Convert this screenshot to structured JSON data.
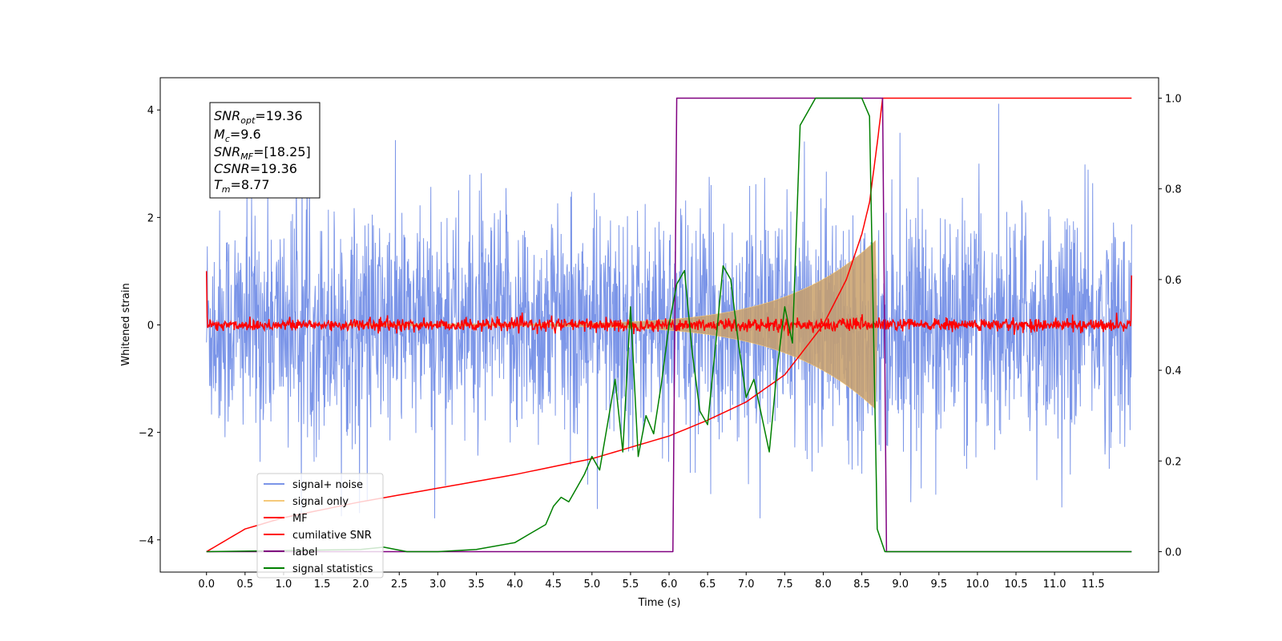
{
  "chart_data": {
    "type": "line",
    "xlabel": "Time (s)",
    "ylabel": "Whitened strain",
    "xlim": [
      -0.6,
      12.35
    ],
    "ylim": [
      -4.6,
      4.6
    ],
    "y2lim": [
      -0.045,
      1.045
    ],
    "x_ticks": [
      "0.0",
      "0.5",
      "1.0",
      "1.5",
      "2.0",
      "2.5",
      "3.0",
      "3.5",
      "4.0",
      "4.5",
      "5.0",
      "5.5",
      "6.0",
      "6.5",
      "7.0",
      "7.5",
      "8.0",
      "8.5",
      "9.0",
      "9.5",
      "10.0",
      "10.5",
      "11.0",
      "11.5"
    ],
    "y_ticks": [
      "−4",
      "−2",
      "0",
      "2",
      "4"
    ],
    "y2_ticks": [
      "0.0",
      "0.2",
      "0.4",
      "0.6",
      "0.8",
      "1.0"
    ],
    "annotation": {
      "snr_opt": "19.36",
      "mc": "9.6",
      "snr_mf": "[18.25]",
      "csnr": "19.36",
      "tm": "8.77"
    },
    "legend_position": "lower-left",
    "series": [
      {
        "name": "signal+ noise",
        "color": "#7b95e8",
        "axis": "left",
        "description_range": [
          -3.6,
          4.2
        ]
      },
      {
        "name": "signal only",
        "color": "#f5c97a",
        "axis": "left",
        "envelope": {
          "t0": 1.8,
          "t_end": 8.7,
          "amp_start": 0.02,
          "amp_end": 1.6
        }
      },
      {
        "name": "MF",
        "color": "#ff0000",
        "axis": "left",
        "baseline": 0.0,
        "noise": 0.06,
        "start_value": 1.0,
        "end_value": 0.92
      },
      {
        "name": "cumilative SNR",
        "color": "#ff0000",
        "axis": "right",
        "x": [
          0.0,
          0.5,
          1.0,
          2.0,
          3.0,
          4.0,
          5.0,
          6.0,
          6.5,
          7.0,
          7.5,
          8.0,
          8.3,
          8.5,
          8.6,
          8.7,
          8.77,
          12.0
        ],
        "y": [
          0.0,
          0.05,
          0.075,
          0.11,
          0.14,
          0.17,
          0.205,
          0.255,
          0.29,
          0.33,
          0.39,
          0.5,
          0.6,
          0.7,
          0.77,
          0.9,
          1.0,
          1.0
        ]
      },
      {
        "name": "label",
        "color": "#800080",
        "axis": "right",
        "x": [
          0.0,
          6.05,
          6.1,
          8.77,
          8.82,
          12.0
        ],
        "y": [
          0.0,
          0.0,
          1.0,
          1.0,
          0.0,
          0.0
        ]
      },
      {
        "name": "signal statistics",
        "color": "#008000",
        "axis": "right",
        "x": [
          0.0,
          2.0,
          2.3,
          2.6,
          3.0,
          3.5,
          4.0,
          4.2,
          4.4,
          4.5,
          4.6,
          4.7,
          4.8,
          4.9,
          5.0,
          5.1,
          5.2,
          5.3,
          5.4,
          5.5,
          5.6,
          5.7,
          5.8,
          5.9,
          6.0,
          6.1,
          6.2,
          6.3,
          6.4,
          6.5,
          6.6,
          6.7,
          6.8,
          6.9,
          7.0,
          7.1,
          7.2,
          7.3,
          7.4,
          7.5,
          7.6,
          7.7,
          7.8,
          7.9,
          8.0,
          8.2,
          8.5,
          8.6,
          8.7,
          8.8,
          9.0,
          12.0
        ],
        "y": [
          0.0,
          0.005,
          0.01,
          0.0,
          0.0,
          0.005,
          0.02,
          0.04,
          0.06,
          0.1,
          0.12,
          0.11,
          0.14,
          0.17,
          0.21,
          0.18,
          0.28,
          0.38,
          0.22,
          0.54,
          0.21,
          0.3,
          0.26,
          0.37,
          0.5,
          0.59,
          0.62,
          0.44,
          0.31,
          0.28,
          0.45,
          0.63,
          0.6,
          0.46,
          0.34,
          0.38,
          0.3,
          0.22,
          0.4,
          0.54,
          0.46,
          0.94,
          0.97,
          1.0,
          1.0,
          1.0,
          1.0,
          0.96,
          0.05,
          0.0,
          0.0,
          0.0
        ]
      }
    ]
  }
}
